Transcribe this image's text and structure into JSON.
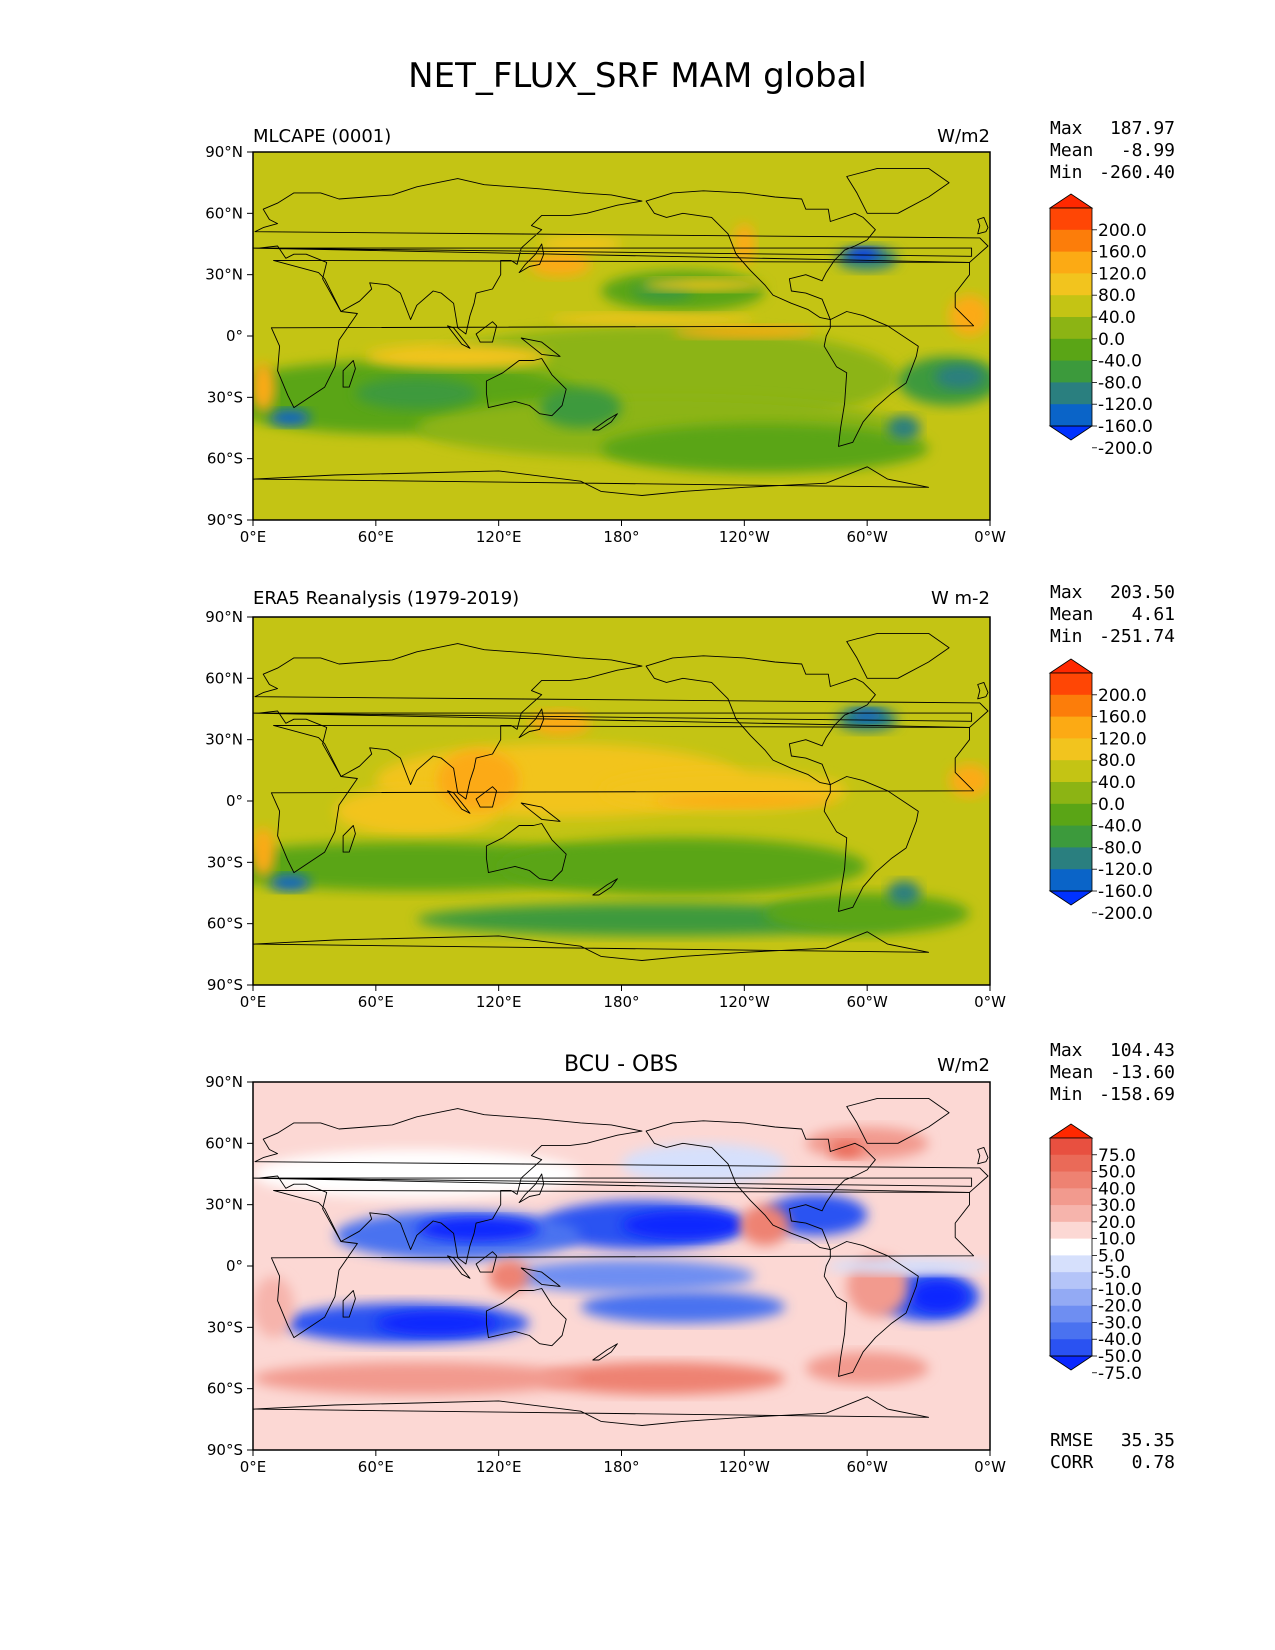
{
  "title": "NET_FLUX_SRF MAM global",
  "colors": {
    "abs_levels": [
      "#0032ff",
      "#0a64c8",
      "#2a7f7f",
      "#3c9a3c",
      "#5aa516",
      "#8cb414",
      "#c4c414",
      "#f2c41e",
      "#fcaa14",
      "#fc7d0a",
      "#ff4605",
      "#ff2800"
    ],
    "diff_levels": [
      "#0a28ff",
      "#2a52f2",
      "#4a72f0",
      "#6e8ef2",
      "#93aaf4",
      "#b4c4f8",
      "#d6e0fc",
      "#ffffff",
      "#fcd8d4",
      "#f6b4ac",
      "#f29a8e",
      "#ee8272",
      "#ea6a58",
      "#e85040",
      "#ff2800"
    ],
    "land_outline": "#000000"
  },
  "chart_data": [
    {
      "type": "heatmap",
      "title": "MLCAPE (0001)",
      "units": "W/m2",
      "stats": [
        {
          "label": "Max",
          "value": "187.97"
        },
        {
          "label": "Mean",
          "value": "-8.99"
        },
        {
          "label": "Min",
          "value": "-260.40"
        }
      ],
      "colorbar_ticks": [
        "200.0",
        "160.0",
        "120.0",
        "80.0",
        "40.0",
        "0.0",
        "-40.0",
        "-80.0",
        "-120.0",
        "-160.0",
        "-200.0"
      ],
      "y_ticks": [
        "90°N",
        "60°N",
        "30°N",
        "0°",
        "30°S",
        "60°S",
        "90°S"
      ],
      "x_ticks": [
        "0°E",
        "60°E",
        "120°E",
        "180°",
        "120°W",
        "60°W",
        "0°W"
      ],
      "xlim": [
        0,
        360
      ],
      "ylim": [
        -90,
        90
      ]
    },
    {
      "type": "heatmap",
      "title": "ERA5 Reanalysis (1979-2019)",
      "units": "W m-2",
      "stats": [
        {
          "label": "Max",
          "value": "203.50"
        },
        {
          "label": "Mean",
          "value": "4.61"
        },
        {
          "label": "Min",
          "value": "-251.74"
        }
      ],
      "colorbar_ticks": [
        "200.0",
        "160.0",
        "120.0",
        "80.0",
        "40.0",
        "0.0",
        "-40.0",
        "-80.0",
        "-120.0",
        "-160.0",
        "-200.0"
      ],
      "y_ticks": [
        "90°N",
        "60°N",
        "30°N",
        "0°",
        "30°S",
        "60°S",
        "90°S"
      ],
      "x_ticks": [
        "0°E",
        "60°E",
        "120°E",
        "180°",
        "120°W",
        "60°W",
        "0°W"
      ],
      "xlim": [
        0,
        360
      ],
      "ylim": [
        -90,
        90
      ]
    },
    {
      "type": "heatmap",
      "title": "BCU - OBS",
      "units": "W/m2",
      "stats": [
        {
          "label": "Max",
          "value": "104.43"
        },
        {
          "label": "Mean",
          "value": "-13.60"
        },
        {
          "label": "Min",
          "value": "-158.69"
        }
      ],
      "bottom_stats": [
        {
          "label": "RMSE",
          "value": "35.35"
        },
        {
          "label": "CORR",
          "value": "0.78"
        }
      ],
      "colorbar_ticks": [
        "75.0",
        "50.0",
        "40.0",
        "30.0",
        "20.0",
        "10.0",
        "5.0",
        "-5.0",
        "-10.0",
        "-20.0",
        "-30.0",
        "-40.0",
        "-50.0",
        "-75.0"
      ],
      "y_ticks": [
        "90°N",
        "60°N",
        "30°N",
        "0°",
        "30°S",
        "60°S",
        "90°S"
      ],
      "x_ticks": [
        "0°E",
        "60°E",
        "120°E",
        "180°",
        "120°W",
        "60°W",
        "0°W"
      ],
      "xlim": [
        0,
        360
      ],
      "ylim": [
        -90,
        90
      ]
    }
  ]
}
